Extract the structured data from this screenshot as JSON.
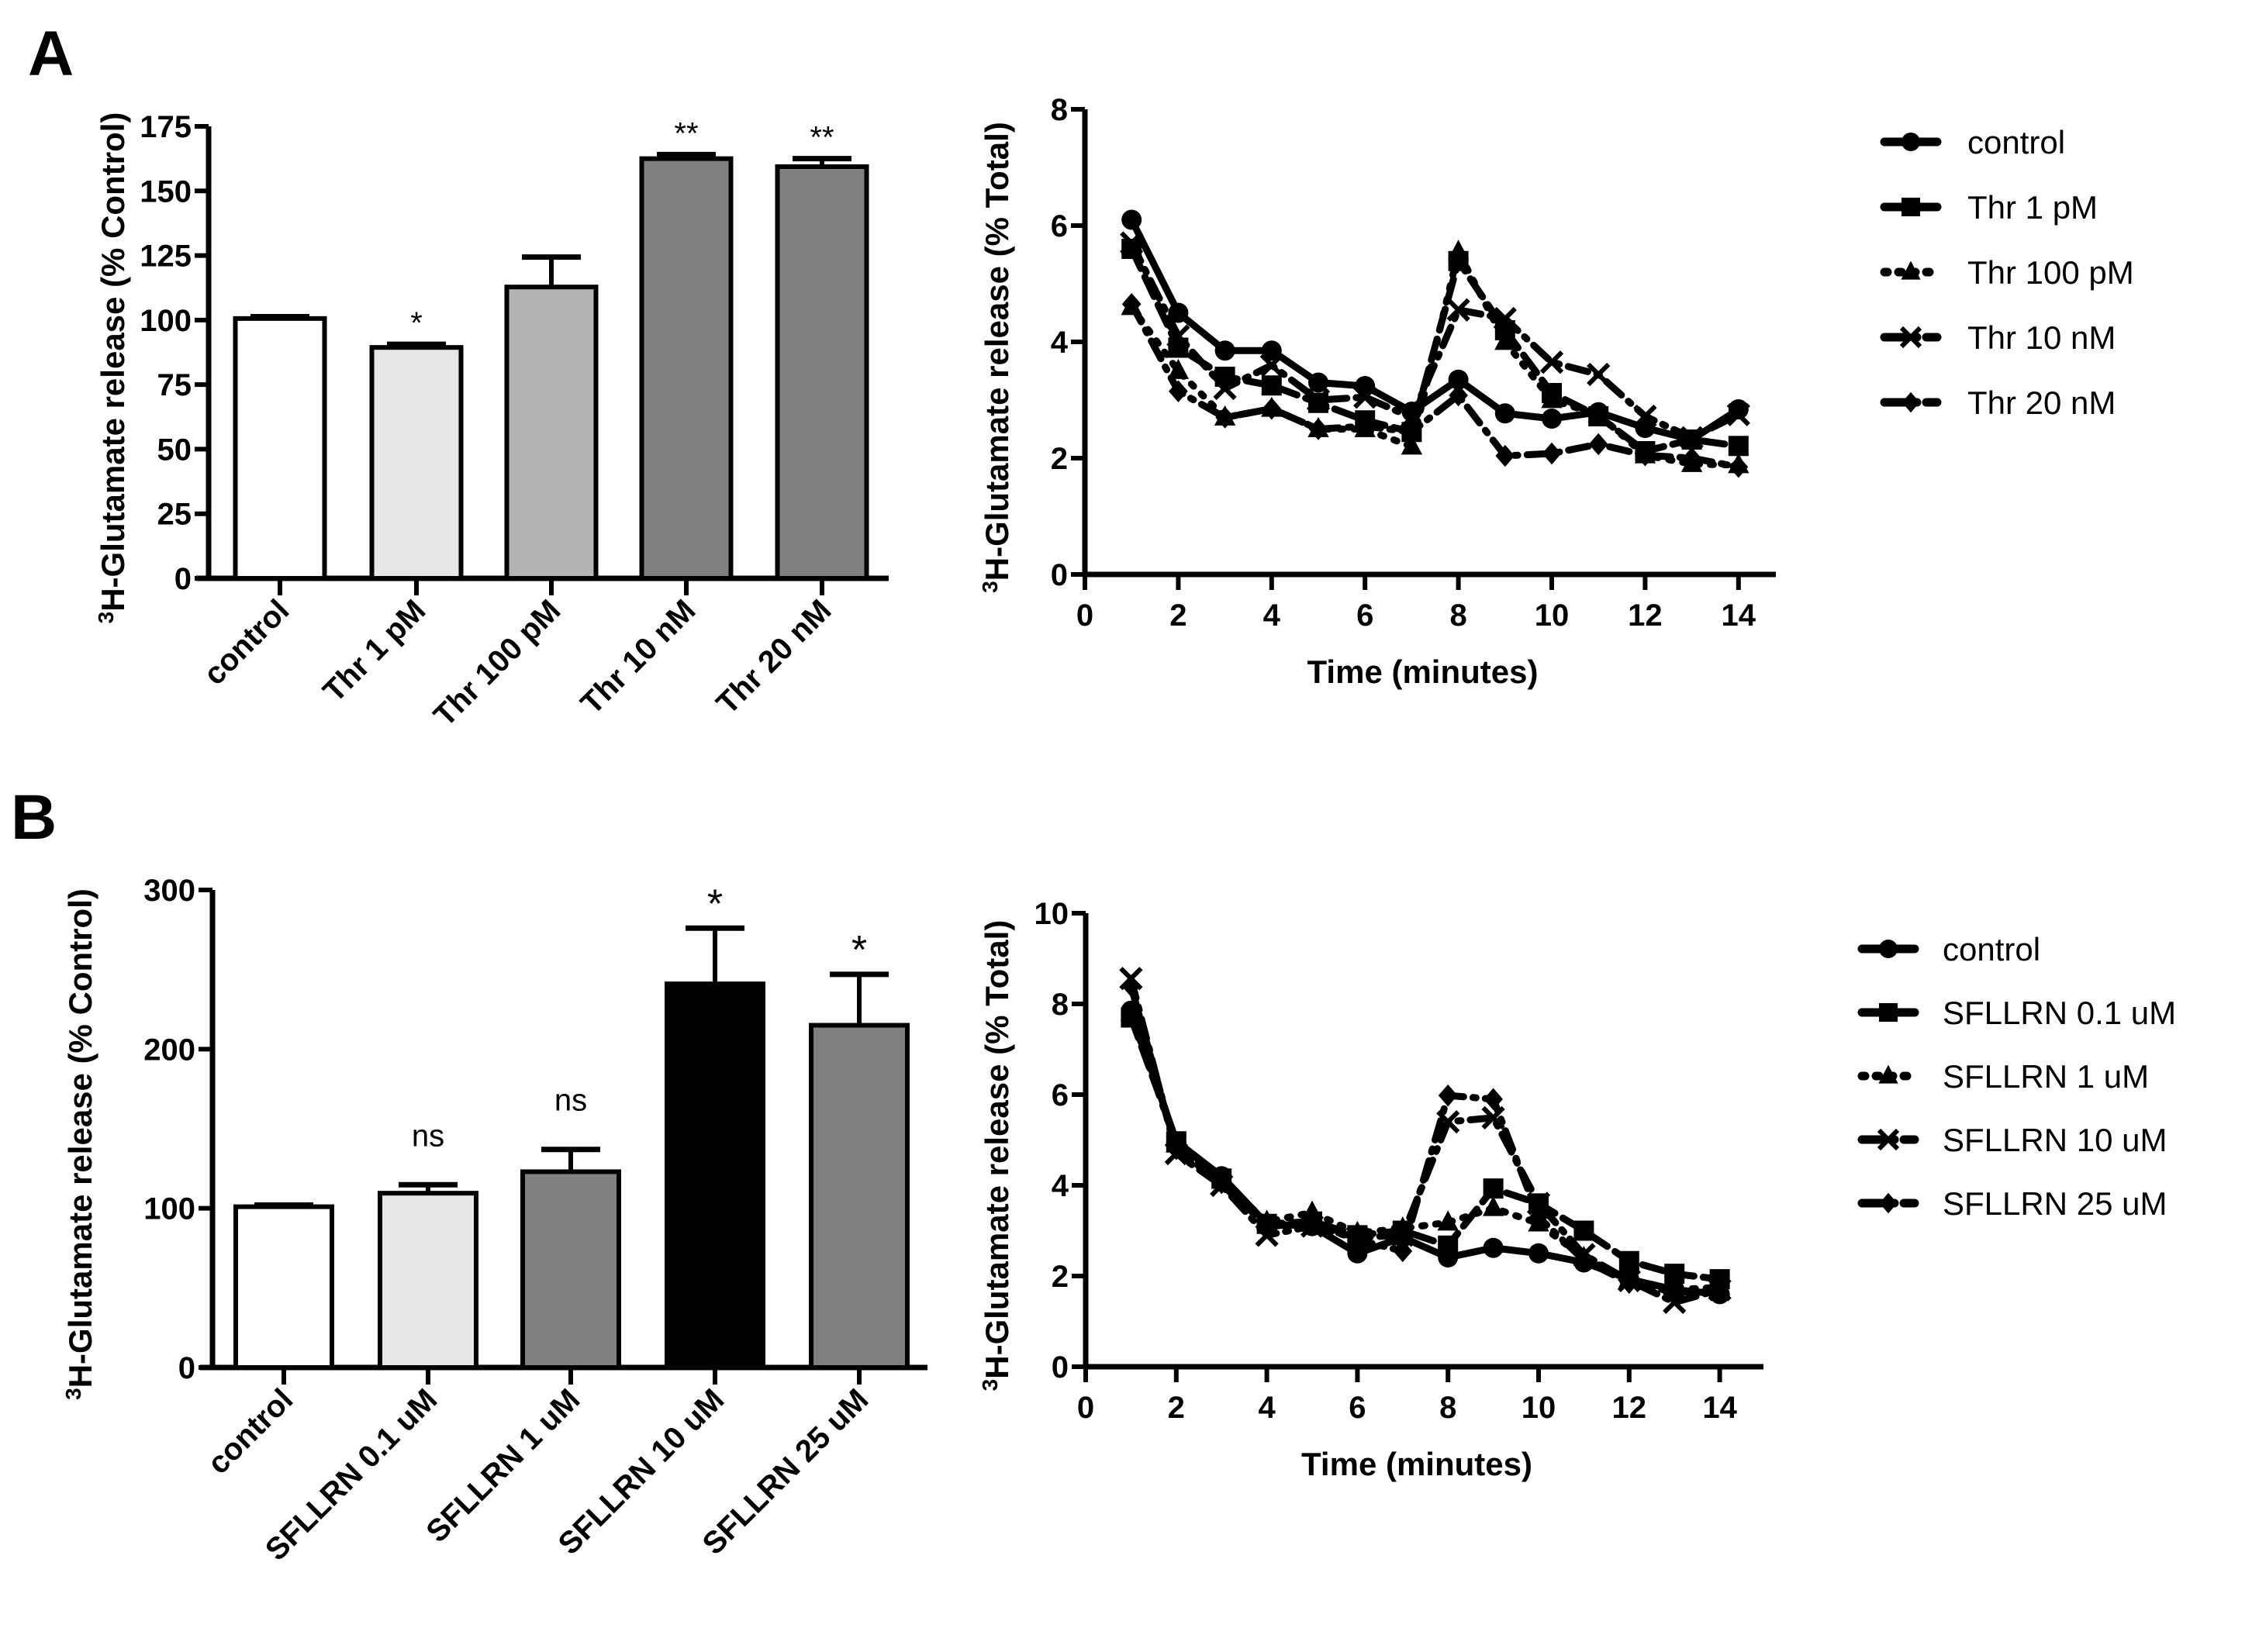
{
  "figure": {
    "panel_labels": [
      "A",
      "B"
    ]
  },
  "chart_data": [
    {
      "id": "A-bar",
      "panel": "A",
      "type": "bar",
      "title": "",
      "xlabel": "",
      "ylabel_sup": "3",
      "ylabel": "H-Glutamate release (% Control)",
      "ylim": [
        0,
        175
      ],
      "yticks": [
        0,
        25,
        50,
        75,
        100,
        125,
        150,
        175
      ],
      "categories": [
        "control",
        "Thr 1 pM",
        "Thr 100 pM",
        "Thr 10 nM",
        "Thr 20 nM"
      ],
      "values": [
        100.6,
        89.4,
        112.8,
        162.5,
        159.4
      ],
      "error_upper": [
        101.3,
        90.6,
        124.4,
        164.1,
        162.5
      ],
      "fills": [
        "#ffffff",
        "#e6e6e6",
        "#b3b3b3",
        "#808080",
        "#808080"
      ],
      "annotations": [
        "",
        "*",
        "",
        "**",
        "**"
      ],
      "grid": false
    },
    {
      "id": "A-line",
      "panel": "A",
      "type": "line",
      "title": "",
      "xlabel": "Time (minutes)",
      "ylabel_sup": "3",
      "ylabel": "H-Glutamate release (% Total)",
      "xlim": [
        0,
        14.5
      ],
      "ylim": [
        0,
        8
      ],
      "xticks": [
        0,
        2,
        4,
        6,
        8,
        10,
        12,
        14
      ],
      "yticks": [
        0,
        2,
        4,
        6,
        8
      ],
      "x": [
        1,
        2,
        3,
        4,
        5,
        6,
        7,
        8,
        9,
        10,
        11,
        12,
        13,
        14
      ],
      "legend_position": "right",
      "grid": false,
      "series": [
        {
          "name": "control",
          "marker": "circle",
          "dash": "solid",
          "values": [
            6.1,
            4.5,
            3.85,
            3.85,
            3.3,
            3.24,
            2.8,
            3.35,
            2.77,
            2.68,
            2.79,
            2.52,
            2.32,
            2.84
          ]
        },
        {
          "name": "Thr 1 pM",
          "marker": "square",
          "dash": "dash",
          "values": [
            5.6,
            3.9,
            3.4,
            3.25,
            2.95,
            2.65,
            2.45,
            5.39,
            4.2,
            3.12,
            2.72,
            2.12,
            2.32,
            2.21
          ]
        },
        {
          "name": "Thr 100 pM",
          "marker": "triangle",
          "dash": "dot",
          "values": [
            4.6,
            3.5,
            2.7,
            2.85,
            2.5,
            2.5,
            2.2,
            5.55,
            4.0,
            3.0,
            2.75,
            2.05,
            1.9,
            1.88
          ]
        },
        {
          "name": "Thr 10 nM",
          "marker": "x",
          "dash": "dashdot",
          "values": [
            5.7,
            4.1,
            3.2,
            3.6,
            3.0,
            3.05,
            2.7,
            4.55,
            4.4,
            3.65,
            3.44,
            2.72,
            2.35,
            2.75
          ]
        },
        {
          "name": "Thr 20 nM",
          "marker": "diamond",
          "dash": "dashdot",
          "values": [
            4.65,
            3.15,
            2.7,
            2.85,
            2.5,
            2.55,
            2.45,
            3.08,
            2.04,
            2.08,
            2.24,
            2.05,
            2.0,
            1.85
          ]
        }
      ]
    },
    {
      "id": "B-bar",
      "panel": "B",
      "type": "bar",
      "title": "",
      "xlabel": "",
      "ylabel_sup": "3",
      "ylabel": "H-Glutamate release (% Control)",
      "ylim": [
        0,
        300
      ],
      "yticks": [
        0,
        100,
        200,
        300
      ],
      "categories": [
        "control",
        "SFLLRN 0.1 uM",
        "SFLLRN 1 uM",
        "SFLLRN 10 uM",
        "SFLLRN 25 uM"
      ],
      "values": [
        101,
        109.5,
        123,
        241,
        215
      ],
      "error_upper": [
        102,
        114.8,
        137,
        276,
        247
      ],
      "fills": [
        "#ffffff",
        "#e6e6e6",
        "#808080",
        "#000000",
        "#808080"
      ],
      "annotations": [
        "",
        "ns",
        "ns",
        "*",
        "*"
      ],
      "grid": false
    },
    {
      "id": "B-line",
      "panel": "B",
      "type": "line",
      "title": "",
      "xlabel": "Time (minutes)",
      "ylabel_sup": "3",
      "ylabel": "H-Glutamate release (% Total)",
      "xlim": [
        0,
        15
      ],
      "ylim": [
        0,
        10
      ],
      "xticks": [
        0,
        2,
        4,
        6,
        8,
        10,
        12,
        14
      ],
      "yticks": [
        0,
        2,
        4,
        6,
        8,
        10
      ],
      "x": [
        1,
        2,
        3,
        4,
        5,
        6,
        7,
        8,
        9,
        10,
        11,
        12,
        13,
        14
      ],
      "legend_position": "right",
      "grid": false,
      "series": [
        {
          "name": "control",
          "marker": "circle",
          "dash": "solid",
          "values": [
            7.85,
            4.97,
            4.2,
            3.15,
            3.1,
            2.5,
            2.85,
            2.41,
            2.62,
            2.5,
            2.3,
            1.93,
            1.7,
            1.6
          ]
        },
        {
          "name": "SFLLRN 0.1 uM",
          "marker": "square",
          "dash": "dash",
          "values": [
            7.7,
            4.97,
            4.15,
            3.15,
            3.2,
            2.9,
            3.0,
            2.67,
            3.93,
            3.6,
            3.0,
            2.33,
            2.05,
            1.93
          ]
        },
        {
          "name": "SFLLRN 1 uM",
          "marker": "triangle",
          "dash": "dot",
          "values": [
            7.8,
            4.9,
            4.1,
            3.2,
            3.4,
            2.95,
            3.05,
            3.18,
            3.5,
            3.16,
            2.4,
            1.93,
            1.7,
            1.75
          ]
        },
        {
          "name": "SFLLRN 10 uM",
          "marker": "x",
          "dash": "dashdot",
          "values": [
            8.56,
            4.7,
            4.0,
            2.9,
            3.1,
            2.85,
            2.9,
            5.4,
            5.49,
            3.6,
            2.47,
            1.9,
            1.42,
            1.7
          ]
        },
        {
          "name": "SFLLRN 25 uM",
          "marker": "diamond",
          "dash": "dashdot",
          "values": [
            8.4,
            4.8,
            4.05,
            3.1,
            3.15,
            2.8,
            2.55,
            5.98,
            5.9,
            3.3,
            2.35,
            1.85,
            1.65,
            1.65
          ]
        }
      ]
    }
  ]
}
